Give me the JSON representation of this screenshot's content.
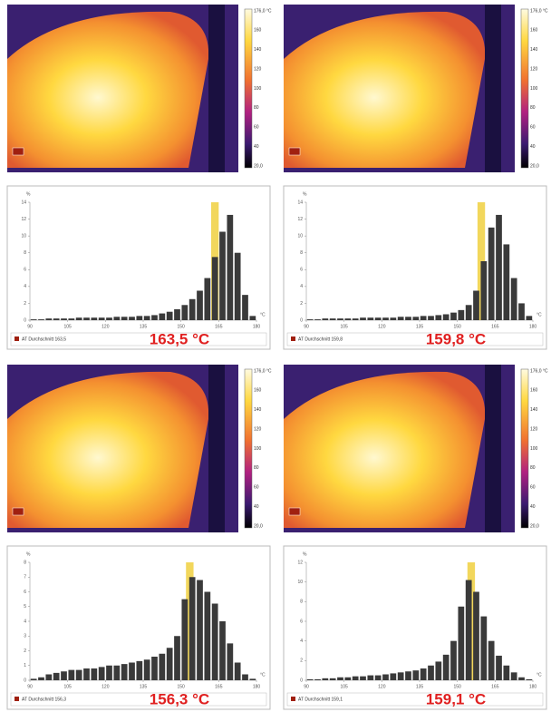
{
  "colorbar": {
    "labels": [
      "176,0 °C",
      "160",
      "140",
      "120",
      "100",
      "80",
      "60",
      "40",
      "20,0"
    ]
  },
  "chart_data": [
    {
      "type": "histogram",
      "color": "#3a3a3a",
      "highlight_color": "#f0d040",
      "highlight": [
        162,
        165
      ],
      "bins": [
        90,
        93,
        96,
        99,
        102,
        105,
        108,
        111,
        114,
        117,
        120,
        123,
        126,
        129,
        132,
        135,
        138,
        141,
        144,
        147,
        150,
        153,
        156,
        159,
        162,
        165,
        168,
        171,
        174,
        177,
        180
      ],
      "values": [
        0.1,
        0.1,
        0.2,
        0.2,
        0.2,
        0.2,
        0.3,
        0.3,
        0.3,
        0.3,
        0.3,
        0.4,
        0.4,
        0.4,
        0.5,
        0.5,
        0.6,
        0.8,
        1.0,
        1.3,
        1.8,
        2.5,
        3.5,
        5,
        7.5,
        10.5,
        12.5,
        8,
        3,
        0.5
      ],
      "xlim": [
        90,
        180
      ],
      "xticks": [
        90,
        105,
        120,
        135,
        150,
        165,
        180
      ],
      "ylim": [
        0,
        14
      ],
      "yticks": [
        0,
        2,
        4,
        6,
        8,
        10,
        12,
        14
      ],
      "y_label": "%",
      "x_label": "°C",
      "legend": "AT Durchschnitt 163,5",
      "annotation": "163,5 °C"
    },
    {
      "type": "histogram",
      "color": "#3a3a3a",
      "highlight_color": "#f0d040",
      "highlight": [
        158,
        161
      ],
      "bins": [
        90,
        93,
        96,
        99,
        102,
        105,
        108,
        111,
        114,
        117,
        120,
        123,
        126,
        129,
        132,
        135,
        138,
        141,
        144,
        147,
        150,
        153,
        156,
        159,
        162,
        165,
        168,
        171,
        174,
        177,
        180
      ],
      "values": [
        0.1,
        0.1,
        0.2,
        0.2,
        0.2,
        0.2,
        0.2,
        0.3,
        0.3,
        0.3,
        0.3,
        0.3,
        0.4,
        0.4,
        0.4,
        0.5,
        0.5,
        0.6,
        0.7,
        0.9,
        1.2,
        1.8,
        3.5,
        7,
        11,
        12.5,
        9,
        5,
        2,
        0.5
      ],
      "xlim": [
        90,
        180
      ],
      "xticks": [
        90,
        105,
        120,
        135,
        150,
        165,
        180
      ],
      "ylim": [
        0,
        14
      ],
      "yticks": [
        0,
        2,
        4,
        6,
        8,
        10,
        12,
        14
      ],
      "y_label": "%",
      "x_label": "°C",
      "legend": "AT Durchschnitt 159,8",
      "annotation": "159,8 °C"
    },
    {
      "type": "histogram",
      "color": "#3a3a3a",
      "highlight_color": "#f0d040",
      "highlight": [
        152,
        155
      ],
      "bins": [
        90,
        93,
        96,
        99,
        102,
        105,
        108,
        111,
        114,
        117,
        120,
        123,
        126,
        129,
        132,
        135,
        138,
        141,
        144,
        147,
        150,
        153,
        156,
        159,
        162,
        165,
        168,
        171,
        174,
        177,
        180
      ],
      "values": [
        0.1,
        0.2,
        0.4,
        0.5,
        0.6,
        0.7,
        0.7,
        0.8,
        0.8,
        0.9,
        1.0,
        1.0,
        1.1,
        1.2,
        1.3,
        1.4,
        1.6,
        1.8,
        2.2,
        3.0,
        5.5,
        7.0,
        6.8,
        6.0,
        5.2,
        4.0,
        2.5,
        1.2,
        0.4,
        0.1
      ],
      "xlim": [
        90,
        180
      ],
      "xticks": [
        90,
        105,
        120,
        135,
        150,
        165,
        180
      ],
      "ylim": [
        0,
        8
      ],
      "yticks": [
        0,
        1,
        2,
        3,
        4,
        5,
        6,
        7,
        8
      ],
      "y_label": "%",
      "x_label": "°C",
      "legend": "AT Durchschnitt 156,3",
      "annotation": "156,3 °C"
    },
    {
      "type": "histogram",
      "color": "#3a3a3a",
      "highlight_color": "#f0d040",
      "highlight": [
        154,
        157
      ],
      "bins": [
        90,
        93,
        96,
        99,
        102,
        105,
        108,
        111,
        114,
        117,
        120,
        123,
        126,
        129,
        132,
        135,
        138,
        141,
        144,
        147,
        150,
        153,
        156,
        159,
        162,
        165,
        168,
        171,
        174,
        177,
        180
      ],
      "values": [
        0.1,
        0.1,
        0.2,
        0.2,
        0.3,
        0.3,
        0.4,
        0.4,
        0.5,
        0.5,
        0.6,
        0.7,
        0.8,
        0.9,
        1.0,
        1.2,
        1.5,
        1.9,
        2.6,
        4.0,
        7.5,
        10.2,
        9,
        6.5,
        4,
        2.5,
        1.5,
        0.8,
        0.3,
        0.1
      ],
      "xlim": [
        90,
        180
      ],
      "xticks": [
        90,
        105,
        120,
        135,
        150,
        165,
        180
      ],
      "ylim": [
        0,
        12
      ],
      "yticks": [
        0,
        2,
        4,
        6,
        8,
        10,
        12
      ],
      "y_label": "%",
      "x_label": "°C",
      "legend": "AT Durchschnitt 159,1",
      "annotation": "159,1 °C"
    }
  ]
}
